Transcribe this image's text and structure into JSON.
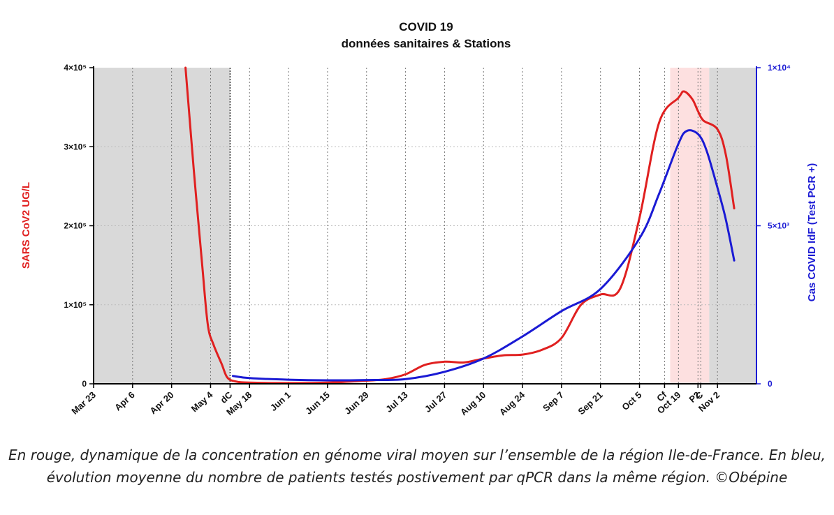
{
  "chart_data": {
    "type": "line",
    "title": "COVID 19",
    "subtitle": "données sanitaires & Stations",
    "ylabel_left": "SARS CoV2  UG/L",
    "ylabel_right": "Cas COVID IdF (Test PCR +)",
    "ylim_left": [
      0,
      400000
    ],
    "ylim_right": [
      0,
      10000
    ],
    "left_ticks": [
      {
        "v": 0,
        "label": "0"
      },
      {
        "v": 100000,
        "label": "1×10⁵"
      },
      {
        "v": 200000,
        "label": "2×10⁵"
      },
      {
        "v": 300000,
        "label": "3×10⁵"
      },
      {
        "v": 400000,
        "label": "4×10⁵"
      }
    ],
    "right_ticks": [
      {
        "v": 0,
        "label": "0"
      },
      {
        "v": 5000,
        "label": "5×10³"
      },
      {
        "v": 10000,
        "label": "1×10⁴"
      }
    ],
    "xlim": [
      "2020-03-23",
      "2020-11-16"
    ],
    "x_ticks": [
      {
        "date": "2020-03-23",
        "label": "Mar 23"
      },
      {
        "date": "2020-04-06",
        "label": "Apr 6"
      },
      {
        "date": "2020-04-20",
        "label": "Apr 20"
      },
      {
        "date": "2020-05-04",
        "label": "May 4"
      },
      {
        "date": "2020-05-11",
        "label": "dC"
      },
      {
        "date": "2020-05-18",
        "label": "May 18"
      },
      {
        "date": "2020-06-01",
        "label": "Jun 1"
      },
      {
        "date": "2020-06-15",
        "label": "Jun 15"
      },
      {
        "date": "2020-06-29",
        "label": "Jun 29"
      },
      {
        "date": "2020-07-13",
        "label": "Jul 13"
      },
      {
        "date": "2020-07-27",
        "label": "Jul 27"
      },
      {
        "date": "2020-08-10",
        "label": "Aug 10"
      },
      {
        "date": "2020-08-24",
        "label": "Aug 24"
      },
      {
        "date": "2020-09-07",
        "label": "Sep 7"
      },
      {
        "date": "2020-09-21",
        "label": "Sep 21"
      },
      {
        "date": "2020-10-05",
        "label": "Oct 5"
      },
      {
        "date": "2020-10-14",
        "label": "Cf"
      },
      {
        "date": "2020-10-19",
        "label": "Oct 19"
      },
      {
        "date": "2020-10-26",
        "label": "P2"
      },
      {
        "date": "2020-10-27",
        "label": "C"
      },
      {
        "date": "2020-11-02",
        "label": "Nov 2"
      }
    ],
    "shaded_regions": [
      {
        "from": "2020-03-23",
        "to": "2020-05-11",
        "color": "#d9d9d9"
      },
      {
        "from": "2020-10-30",
        "to": "2020-11-16",
        "color": "#d9d9d9"
      },
      {
        "from": "2020-10-16",
        "to": "2020-10-30",
        "color": "#fde0e0"
      }
    ],
    "grid": "vertical dotted at date ticks, horizontal dotted at left-axis ticks",
    "series": [
      {
        "color": "#e02020",
        "axis": "left",
        "points": [
          [
            "2020-04-25",
            400000
          ],
          [
            "2020-04-28",
            270000
          ],
          [
            "2020-05-01",
            150000
          ],
          [
            "2020-05-03",
            75000
          ],
          [
            "2020-05-05",
            50000
          ],
          [
            "2020-05-08",
            25000
          ],
          [
            "2020-05-10",
            8000
          ],
          [
            "2020-05-13",
            3000
          ],
          [
            "2020-05-18",
            1500
          ],
          [
            "2020-06-01",
            1000
          ],
          [
            "2020-06-15",
            1500
          ],
          [
            "2020-06-29",
            4000
          ],
          [
            "2020-07-06",
            6000
          ],
          [
            "2020-07-13",
            12000
          ],
          [
            "2020-07-20",
            24000
          ],
          [
            "2020-07-27",
            28000
          ],
          [
            "2020-08-03",
            27000
          ],
          [
            "2020-08-10",
            32000
          ],
          [
            "2020-08-17",
            36000
          ],
          [
            "2020-08-24",
            37000
          ],
          [
            "2020-08-31",
            43000
          ],
          [
            "2020-09-07",
            58000
          ],
          [
            "2020-09-14",
            100000
          ],
          [
            "2020-09-21",
            113000
          ],
          [
            "2020-09-28",
            120000
          ],
          [
            "2020-10-05",
            210000
          ],
          [
            "2020-10-12",
            330000
          ],
          [
            "2020-10-19",
            362000
          ],
          [
            "2020-10-21",
            370000
          ],
          [
            "2020-10-24",
            360000
          ],
          [
            "2020-10-26",
            345000
          ],
          [
            "2020-10-28",
            333000
          ],
          [
            "2020-11-02",
            322000
          ],
          [
            "2020-11-05",
            290000
          ],
          [
            "2020-11-08",
            222000
          ]
        ]
      },
      {
        "color": "#1a1ad4",
        "axis": "right",
        "points": [
          [
            "2020-05-12",
            250
          ],
          [
            "2020-05-18",
            180
          ],
          [
            "2020-06-01",
            130
          ],
          [
            "2020-06-15",
            110
          ],
          [
            "2020-06-29",
            120
          ],
          [
            "2020-07-13",
            150
          ],
          [
            "2020-07-27",
            380
          ],
          [
            "2020-08-10",
            800
          ],
          [
            "2020-08-24",
            1500
          ],
          [
            "2020-09-07",
            2300
          ],
          [
            "2020-09-21",
            3000
          ],
          [
            "2020-10-05",
            4600
          ],
          [
            "2020-10-12",
            6000
          ],
          [
            "2020-10-19",
            7600
          ],
          [
            "2020-10-22",
            8000
          ],
          [
            "2020-10-26",
            7900
          ],
          [
            "2020-10-29",
            7400
          ],
          [
            "2020-11-02",
            6200
          ],
          [
            "2020-11-05",
            5200
          ],
          [
            "2020-11-08",
            3900
          ]
        ]
      }
    ]
  },
  "caption": "En rouge, dynamique de la concentration en génome viral moyen sur l’ensemble de la région Ile-de-France. En bleu, évolution moyenne du nombre de patients testés postivement par qPCR dans la même région. ©Obépine"
}
